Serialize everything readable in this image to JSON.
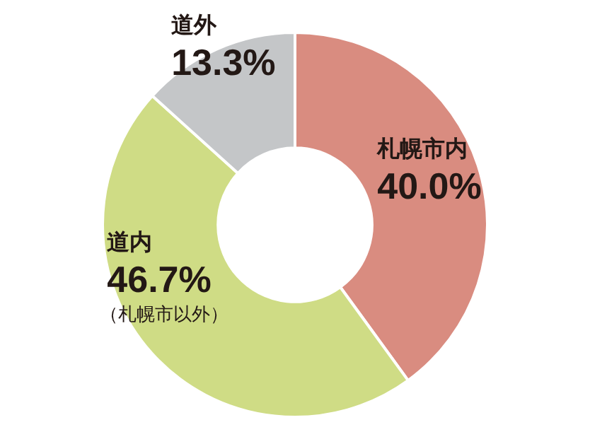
{
  "chart_data": {
    "type": "donut",
    "categories": [
      "札幌市内",
      "道内",
      "道外"
    ],
    "values": [
      40.0,
      46.7,
      13.3
    ],
    "value_labels": [
      "40.0%",
      "46.7%",
      "13.3%"
    ],
    "colors": [
      "#d98c80",
      "#cfdc85",
      "#c4c6c8"
    ],
    "annotations": [
      {
        "text": "（札幌市以外）",
        "x": "道内"
      }
    ],
    "legend": false
  }
}
